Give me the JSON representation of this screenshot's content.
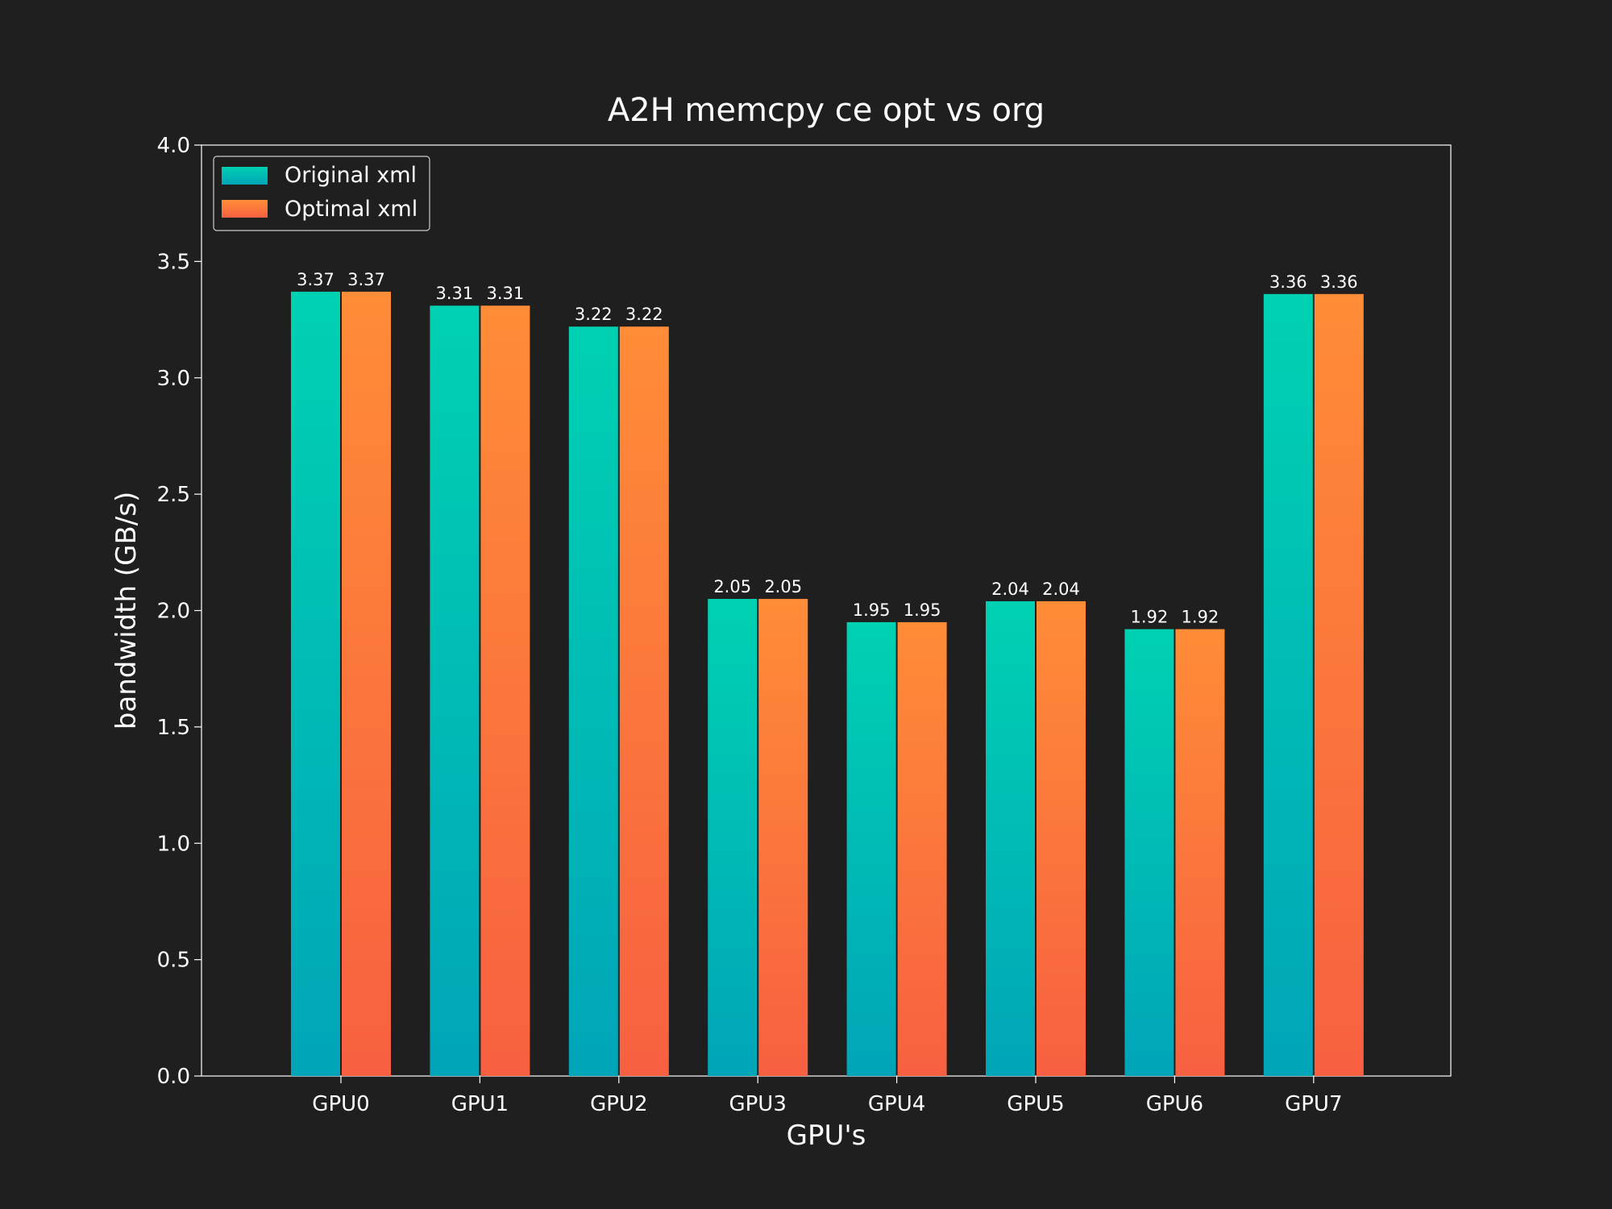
{
  "chart_data": {
    "type": "bar",
    "title": "A2H memcpy ce opt vs org",
    "xlabel": "GPU's",
    "ylabel": "bandwidth (GB/s)",
    "ylim": [
      0,
      4.0
    ],
    "yticks": [
      0.0,
      0.5,
      1.0,
      1.5,
      2.0,
      2.5,
      3.0,
      3.5,
      4.0
    ],
    "ytick_labels": [
      "0.0",
      "0.5",
      "1.0",
      "1.5",
      "2.0",
      "2.5",
      "3.0",
      "3.5",
      "4.0"
    ],
    "categories": [
      "GPU0",
      "GPU1",
      "GPU2",
      "GPU3",
      "GPU4",
      "GPU5",
      "GPU6",
      "GPU7"
    ],
    "series": [
      {
        "name": "Original xml",
        "values": [
          3.37,
          3.31,
          3.22,
          2.05,
          1.95,
          2.04,
          1.92,
          3.36
        ],
        "labels": [
          "3.37",
          "3.31",
          "3.22",
          "2.05",
          "1.95",
          "2.04",
          "1.92",
          "3.36"
        ],
        "color_top": "#00d1b2",
        "color_bottom": "#00a5b8"
      },
      {
        "name": "Optimal xml",
        "values": [
          3.37,
          3.31,
          3.22,
          2.05,
          1.95,
          2.04,
          1.92,
          3.36
        ],
        "labels": [
          "3.37",
          "3.31",
          "3.22",
          "2.05",
          "1.95",
          "2.04",
          "1.92",
          "3.36"
        ],
        "color_top": "#ff8c37",
        "color_bottom": "#f76041"
      }
    ],
    "legend_position": "top-left",
    "grid": false,
    "background": "#1f1f1f",
    "text_color": "#ffffff"
  }
}
